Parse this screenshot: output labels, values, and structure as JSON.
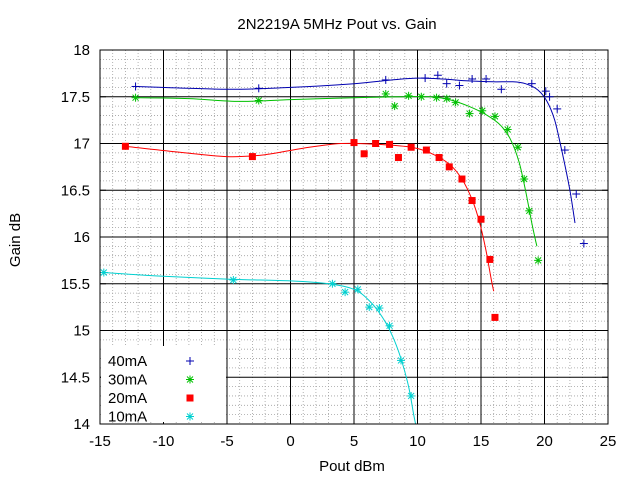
{
  "chart_data": {
    "type": "scatter",
    "title": "2N2219A 5MHz Pout vs. Gain",
    "xlabel": "Pout dBm",
    "ylabel": "Gain dB",
    "xlim": [
      -15,
      25
    ],
    "ylim": [
      14,
      18
    ],
    "x_ticks": [
      -15,
      -10,
      -5,
      0,
      5,
      10,
      15,
      20,
      25
    ],
    "y_ticks": [
      14,
      14.5,
      15,
      15.5,
      16,
      16.5,
      17,
      17.5,
      18
    ],
    "x_tick_labels": [
      "-15",
      "-10",
      "-5",
      "0",
      "5",
      "10",
      "15",
      "20",
      "25"
    ],
    "y_tick_labels": [
      "14",
      "14.5",
      "15",
      "15.5",
      "16",
      "16.5",
      "17",
      "17.5",
      "18"
    ],
    "grid": "major solid, minor dotted",
    "legend_position": "bottom-left",
    "series": [
      {
        "name": "40mA",
        "color": "#0000b0",
        "marker": "plus",
        "points": [
          [
            -12.2,
            17.61
          ],
          [
            -2.5,
            17.59
          ],
          [
            7.5,
            17.68
          ],
          [
            10.6,
            17.7
          ],
          [
            11.6,
            17.73
          ],
          [
            12.3,
            17.64
          ],
          [
            13.3,
            17.62
          ],
          [
            14.3,
            17.69
          ],
          [
            15.4,
            17.69
          ],
          [
            16.6,
            17.58
          ],
          [
            19.0,
            17.64
          ],
          [
            20.1,
            17.56
          ],
          [
            20.4,
            17.5
          ],
          [
            21.0,
            17.37
          ],
          [
            21.6,
            16.93
          ],
          [
            22.5,
            16.46
          ],
          [
            23.1,
            15.93
          ]
        ],
        "fit": [
          [
            -12.2,
            17.61
          ],
          [
            -5,
            17.58
          ],
          [
            0,
            17.6
          ],
          [
            5,
            17.64
          ],
          [
            8,
            17.68
          ],
          [
            10,
            17.7
          ],
          [
            12,
            17.69
          ],
          [
            14,
            17.67
          ],
          [
            16,
            17.66
          ],
          [
            17.5,
            17.66
          ],
          [
            18.5,
            17.64
          ],
          [
            19.5,
            17.57
          ],
          [
            20.2,
            17.45
          ],
          [
            20.8,
            17.25
          ],
          [
            21.4,
            16.9
          ],
          [
            22.0,
            16.5
          ],
          [
            22.4,
            16.15
          ]
        ]
      },
      {
        "name": "30mA",
        "color": "#00c000",
        "marker": "star",
        "points": [
          [
            -12.2,
            17.49
          ],
          [
            -2.5,
            17.46
          ],
          [
            7.5,
            17.53
          ],
          [
            8.2,
            17.4
          ],
          [
            9.3,
            17.51
          ],
          [
            10.3,
            17.5
          ],
          [
            11.5,
            17.49
          ],
          [
            12.3,
            17.48
          ],
          [
            13.0,
            17.44
          ],
          [
            14.1,
            17.32
          ],
          [
            15.1,
            17.35
          ],
          [
            16.1,
            17.29
          ],
          [
            17.1,
            17.15
          ],
          [
            17.9,
            16.96
          ],
          [
            18.4,
            16.62
          ],
          [
            18.8,
            16.28
          ],
          [
            19.5,
            15.75
          ]
        ],
        "fit": [
          [
            -12.2,
            17.49
          ],
          [
            -8,
            17.48
          ],
          [
            -4,
            17.45
          ],
          [
            0,
            17.47
          ],
          [
            5,
            17.49
          ],
          [
            9,
            17.5
          ],
          [
            11,
            17.5
          ],
          [
            12.5,
            17.47
          ],
          [
            14,
            17.4
          ],
          [
            15.5,
            17.3
          ],
          [
            16.5,
            17.2
          ],
          [
            17.3,
            17.05
          ],
          [
            18.0,
            16.8
          ],
          [
            18.5,
            16.5
          ],
          [
            19.0,
            16.15
          ],
          [
            19.4,
            15.9
          ]
        ]
      },
      {
        "name": "20mA",
        "color": "#ff0000",
        "marker": "square",
        "points": [
          [
            -13.0,
            16.97
          ],
          [
            -3.0,
            16.86
          ],
          [
            5.0,
            17.01
          ],
          [
            5.8,
            16.89
          ],
          [
            6.7,
            17.0
          ],
          [
            7.8,
            16.99
          ],
          [
            8.5,
            16.85
          ],
          [
            9.5,
            16.96
          ],
          [
            10.7,
            16.93
          ],
          [
            11.7,
            16.85
          ],
          [
            12.5,
            16.75
          ],
          [
            13.5,
            16.62
          ],
          [
            14.3,
            16.39
          ],
          [
            15.0,
            16.19
          ],
          [
            15.7,
            15.76
          ],
          [
            16.1,
            15.14
          ]
        ],
        "fit": [
          [
            -13.0,
            16.97
          ],
          [
            -9,
            16.91
          ],
          [
            -5,
            16.86
          ],
          [
            -2,
            16.88
          ],
          [
            1,
            16.95
          ],
          [
            4,
            17.0
          ],
          [
            7,
            16.99
          ],
          [
            9.5,
            16.96
          ],
          [
            11,
            16.9
          ],
          [
            12.5,
            16.78
          ],
          [
            13.5,
            16.62
          ],
          [
            14.3,
            16.4
          ],
          [
            14.9,
            16.15
          ],
          [
            15.4,
            15.85
          ],
          [
            15.8,
            15.55
          ],
          [
            16.0,
            15.42
          ]
        ]
      },
      {
        "name": "10mA",
        "color": "#00d0d0",
        "marker": "star",
        "points": [
          [
            -14.7,
            15.62
          ],
          [
            -4.5,
            15.54
          ],
          [
            3.3,
            15.5
          ],
          [
            4.3,
            15.41
          ],
          [
            5.3,
            15.44
          ],
          [
            6.2,
            15.25
          ],
          [
            7.0,
            15.24
          ],
          [
            7.8,
            15.05
          ],
          [
            8.7,
            14.68
          ],
          [
            9.5,
            14.3
          ]
        ],
        "fit": [
          [
            -14.7,
            15.62
          ],
          [
            -10,
            15.58
          ],
          [
            -5,
            15.55
          ],
          [
            0,
            15.53
          ],
          [
            3,
            15.5
          ],
          [
            5,
            15.44
          ],
          [
            6.2,
            15.32
          ],
          [
            7.2,
            15.15
          ],
          [
            8.0,
            14.95
          ],
          [
            8.7,
            14.7
          ],
          [
            9.3,
            14.4
          ],
          [
            9.7,
            14.1
          ],
          [
            9.85,
            14.0
          ]
        ]
      }
    ]
  }
}
